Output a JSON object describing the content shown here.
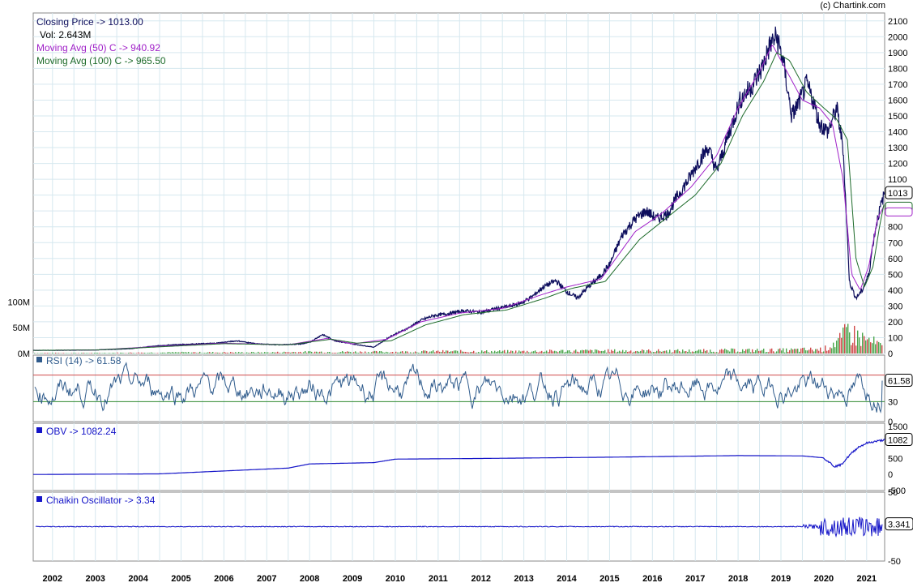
{
  "credit": "(c) Chartink.com",
  "colors": {
    "price": "#0d0d5c",
    "ma50": "#a020c8",
    "ma100": "#1e6b2a",
    "volume_up": "#4ca64c",
    "volume_down": "#d04a4a",
    "rsi": "#2f5b8c",
    "rsi_upper": "#d04a4a",
    "rsi_lower": "#2f8a2f",
    "obv": "#1414c8",
    "chaikin": "#1414c8",
    "grid": "#d6e8ef"
  },
  "price_panel": {
    "legend": {
      "close": "Closing Price -> 1013.00",
      "vol": "Vol: 2.643M",
      "ma50": "Moving Avg (50) C -> 940.92",
      "ma100": "Moving Avg (100) C -> 965.50"
    },
    "last_value_label": "1013",
    "y_ticks": [
      "0",
      "100",
      "200",
      "300",
      "400",
      "500",
      "600",
      "700",
      "800",
      "900",
      "1000",
      "1100",
      "1200",
      "1300",
      "1400",
      "1500",
      "1600",
      "1700",
      "1800",
      "1900",
      "2000",
      "2100"
    ],
    "volume_ticks": [
      "0M",
      "50M",
      "100M"
    ]
  },
  "rsi_panel": {
    "label": "RSI (14) -> 61.58",
    "last_value_label": "61.58",
    "ticks": [
      "0",
      "30",
      "70"
    ],
    "visible_ticks": [
      "0",
      "30"
    ]
  },
  "obv_panel": {
    "label": "OBV -> 1082.24",
    "last_value_label": "1082",
    "ticks": [
      "-500",
      "0",
      "500",
      "1000",
      "1500"
    ]
  },
  "chaikin_panel": {
    "label": "Chaikin Oscillator -> 3.34",
    "last_value_label": "3.341",
    "ticks": [
      "50",
      "-50"
    ]
  },
  "x_labels": [
    "2002",
    "2003",
    "2004",
    "2005",
    "2006",
    "2007",
    "2008",
    "2009",
    "2010",
    "2011",
    "2012",
    "2013",
    "2014",
    "2015",
    "2016",
    "2017",
    "2018",
    "2019",
    "2020",
    "2021"
  ],
  "chart_data": {
    "type": "line",
    "title": "",
    "x_unit": "year",
    "x_range": [
      2001.55,
      2021.42
    ],
    "ylim": [
      0,
      2150
    ],
    "series": [
      {
        "name": "Closing Price",
        "x": [
          2001.55,
          2002.0,
          2003.0,
          2003.8,
          2004.3,
          2004.8,
          2005.3,
          2005.8,
          2006.3,
          2006.8,
          2007.3,
          2007.8,
          2008.0,
          2008.3,
          2008.6,
          2009.0,
          2009.5,
          2009.9,
          2010.3,
          2010.6,
          2010.9,
          2011.2,
          2011.6,
          2012.0,
          2012.3,
          2012.7,
          2012.95,
          2013.2,
          2013.45,
          2013.75,
          2014.0,
          2014.25,
          2014.5,
          2014.75,
          2015.0,
          2015.3,
          2015.6,
          2015.85,
          2016.1,
          2016.35,
          2016.6,
          2016.85,
          2017.05,
          2017.3,
          2017.5,
          2017.8,
          2018.05,
          2018.35,
          2018.55,
          2018.75,
          2018.9,
          2019.05,
          2019.25,
          2019.45,
          2019.6,
          2019.75,
          2019.9,
          2020.1,
          2020.3,
          2020.45,
          2020.6,
          2020.75,
          2020.9,
          2021.05,
          2021.15,
          2021.25,
          2021.35,
          2021.42
        ],
        "y": [
          20,
          20,
          22,
          30,
          45,
          55,
          60,
          65,
          80,
          60,
          55,
          60,
          70,
          120,
          80,
          60,
          40,
          110,
          160,
          210,
          240,
          250,
          270,
          260,
          280,
          300,
          320,
          360,
          420,
          460,
          390,
          350,
          420,
          480,
          560,
          750,
          850,
          900,
          850,
          880,
          1000,
          1100,
          1200,
          1300,
          1150,
          1400,
          1600,
          1700,
          1800,
          1950,
          2000,
          1850,
          1500,
          1600,
          1700,
          1600,
          1450,
          1400,
          1550,
          1300,
          450,
          350,
          400,
          500,
          700,
          850,
          950,
          1013
        ]
      },
      {
        "name": "Moving Avg (50) C",
        "x": [
          2001.55,
          2003.0,
          2004.5,
          2006.0,
          2007.5,
          2008.4,
          2009.0,
          2009.8,
          2010.6,
          2011.5,
          2012.5,
          2013.4,
          2014.0,
          2014.8,
          2015.6,
          2016.2,
          2016.9,
          2017.5,
          2018.0,
          2018.5,
          2018.8,
          2019.1,
          2019.5,
          2019.9,
          2020.2,
          2020.45,
          2020.65,
          2020.85,
          2021.05,
          2021.25,
          2021.42
        ],
        "y": [
          20,
          22,
          45,
          65,
          55,
          95,
          60,
          90,
          200,
          255,
          285,
          370,
          420,
          470,
          770,
          880,
          1050,
          1250,
          1550,
          1780,
          1950,
          1800,
          1600,
          1550,
          1450,
          1100,
          500,
          400,
          550,
          850,
          940.92
        ]
      },
      {
        "name": "Moving Avg (100) C",
        "x": [
          2001.55,
          2003.0,
          2004.5,
          2006.0,
          2007.5,
          2008.5,
          2009.1,
          2009.9,
          2010.7,
          2011.6,
          2012.6,
          2013.5,
          2014.1,
          2014.9,
          2015.7,
          2016.3,
          2017.0,
          2017.6,
          2018.1,
          2018.6,
          2018.9,
          2019.2,
          2019.6,
          2020.0,
          2020.3,
          2020.55,
          2020.75,
          2020.95,
          2021.15,
          2021.3,
          2021.42
        ],
        "y": [
          20,
          22,
          42,
          62,
          55,
          90,
          65,
          80,
          180,
          245,
          275,
          350,
          410,
          455,
          720,
          850,
          1000,
          1200,
          1500,
          1720,
          1900,
          1850,
          1650,
          1550,
          1480,
          1350,
          600,
          420,
          550,
          800,
          965.5
        ]
      }
    ],
    "volume": {
      "name": "Vol",
      "ylim": [
        0,
        110
      ],
      "unit": "M",
      "x": [
        2002,
        2003,
        2004,
        2005,
        2006,
        2007,
        2008,
        2009,
        2010,
        2011,
        2012,
        2013,
        2014,
        2015,
        2016,
        2017,
        2018,
        2019,
        2020.0,
        2020.2,
        2020.4,
        2020.55,
        2020.7,
        2020.85,
        2021.0,
        2021.15,
        2021.3,
        2021.42
      ],
      "y": [
        1,
        1,
        1.5,
        2,
        2,
        2,
        3,
        3,
        3,
        4,
        4,
        4,
        5,
        5,
        5,
        5,
        6,
        6,
        8,
        20,
        25,
        45,
        35,
        30,
        25,
        20,
        15,
        2.643
      ]
    },
    "rsi": {
      "name": "RSI (14)",
      "ylim": [
        0,
        100
      ],
      "lines": [
        30,
        70
      ],
      "last": 61.58
    },
    "obv": {
      "name": "OBV",
      "ylim": [
        -500,
        1600
      ],
      "x": [
        2001.55,
        2004.5,
        2005.5,
        2007.5,
        2008.0,
        2009.5,
        2010.0,
        2012.0,
        2015.0,
        2018.0,
        2019.5,
        2020.0,
        2020.25,
        2020.4,
        2020.6,
        2020.8,
        2021.0,
        2021.2,
        2021.42
      ],
      "y": [
        0,
        20,
        80,
        200,
        330,
        370,
        480,
        500,
        540,
        590,
        580,
        520,
        250,
        300,
        600,
        850,
        980,
        1030,
        1082.24
      ]
    },
    "chaikin": {
      "name": "Chaikin Oscillator",
      "ylim": [
        -50,
        50
      ],
      "last": 3.34
    }
  }
}
